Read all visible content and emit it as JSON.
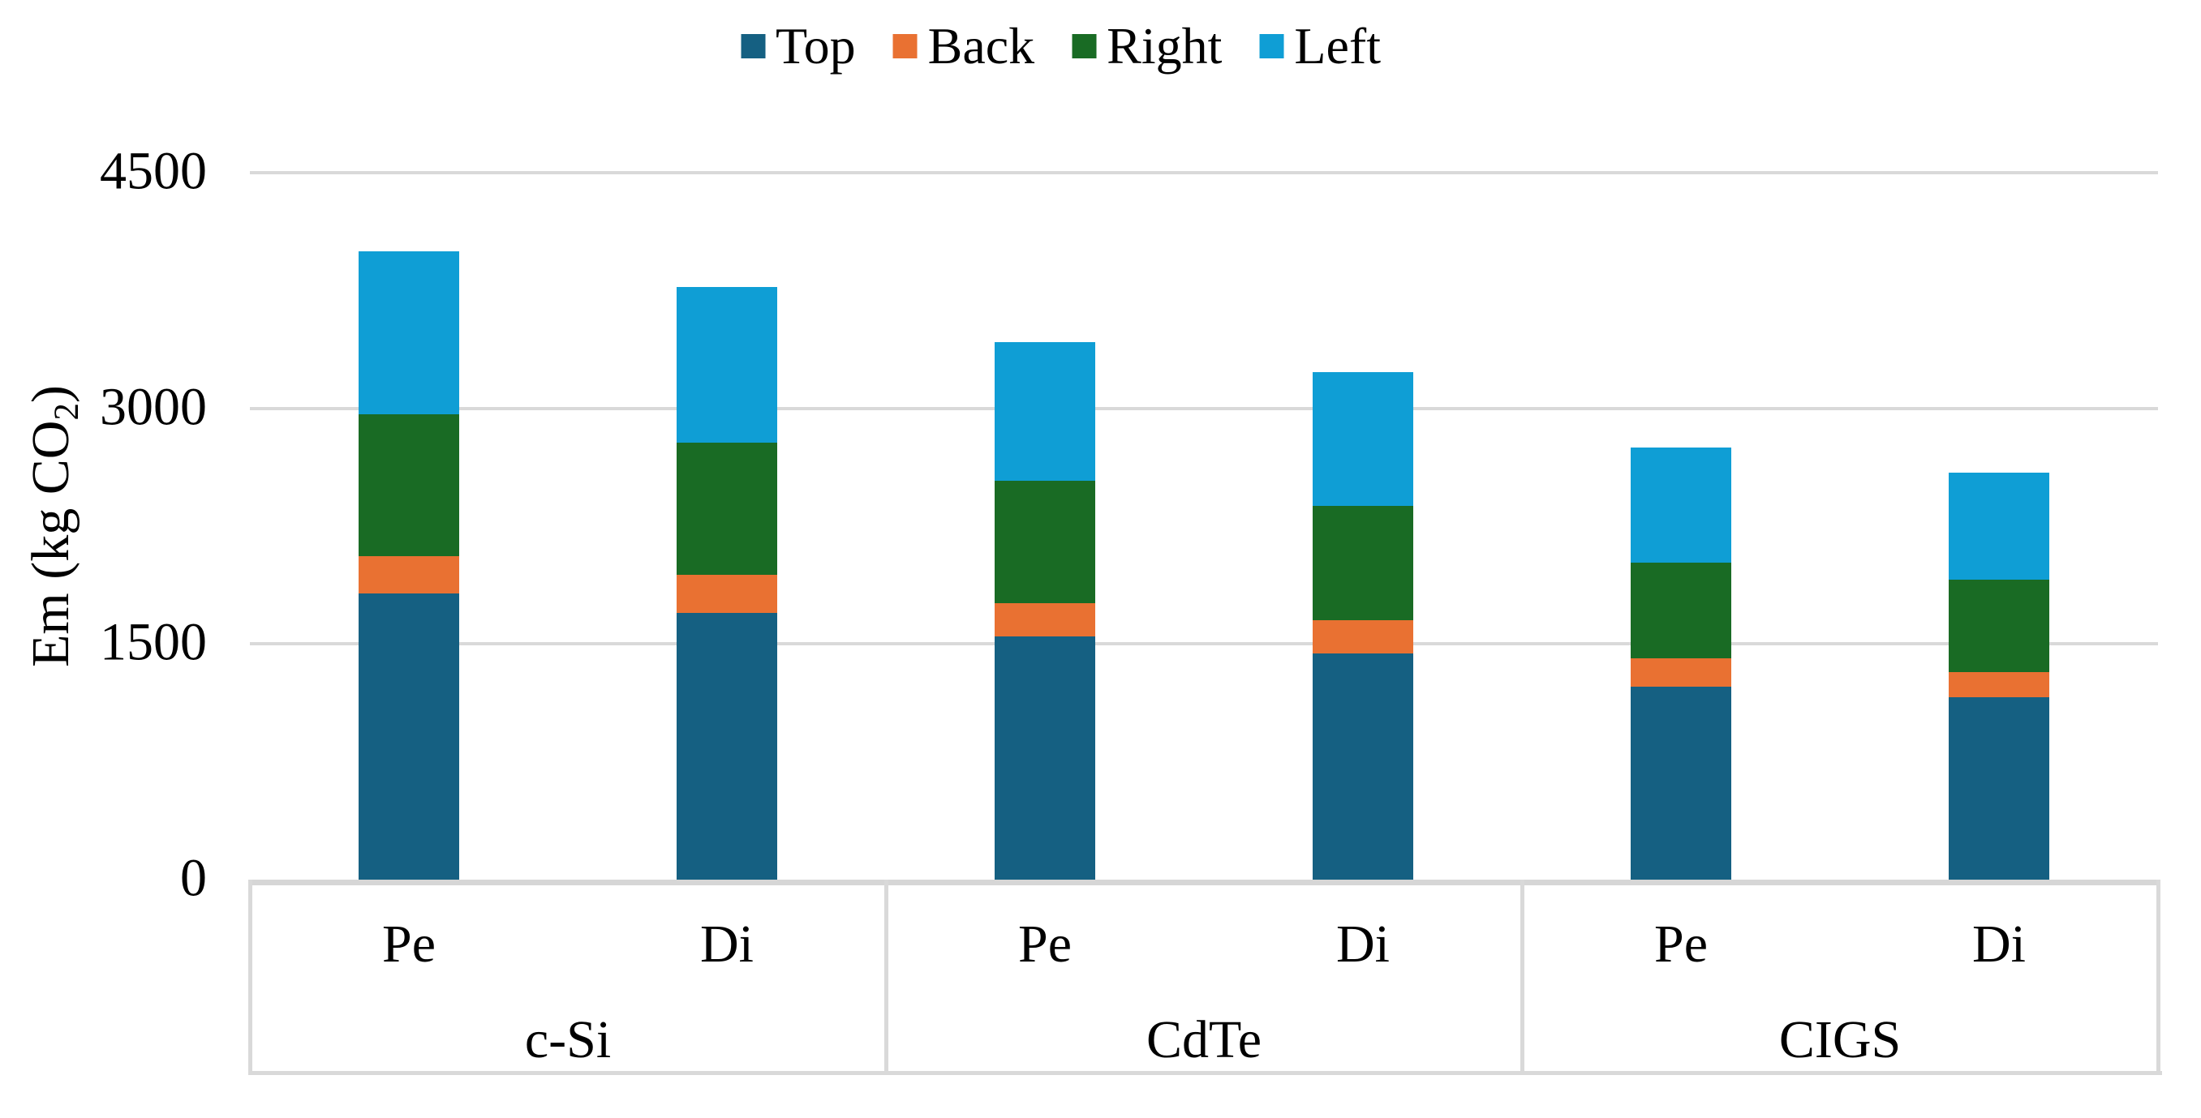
{
  "chart_data": {
    "type": "bar",
    "stacked": true,
    "title": "",
    "ylabel": "Em (kg CO2)",
    "ylabel_parts": {
      "pre": "Em (kg CO",
      "sub": "2",
      "post": ")"
    },
    "ylim": [
      0,
      4500
    ],
    "yticks": [
      0,
      1500,
      3000,
      4500
    ],
    "ytick_labels": [
      "0",
      "1500",
      "3000",
      "4500"
    ],
    "grid": true,
    "legend_position": "top",
    "groups": [
      {
        "label": "c-Si",
        "items": [
          "Pe",
          "Di"
        ]
      },
      {
        "label": "CdTe",
        "items": [
          "Pe",
          "Di"
        ]
      },
      {
        "label": "CIGS",
        "items": [
          "Pe",
          "Di"
        ]
      }
    ],
    "bar_labels": [
      "c-Si Pe",
      "c-Si Di",
      "CdTe Pe",
      "CdTe Di",
      "CIGS Pe",
      "CIGS Di"
    ],
    "stack_order_bottom_to_top": [
      "Top",
      "Back",
      "Right",
      "Left"
    ],
    "series": [
      {
        "name": "Top",
        "color": "#156082",
        "values": [
          1820,
          1700,
          1550,
          1440,
          1230,
          1160
        ]
      },
      {
        "name": "Back",
        "color": "#E97132",
        "values": [
          240,
          240,
          210,
          210,
          180,
          160
        ]
      },
      {
        "name": "Right",
        "color": "#196B24",
        "values": [
          900,
          840,
          780,
          730,
          610,
          590
        ]
      },
      {
        "name": "Left",
        "color": "#0F9ED5",
        "values": [
          1040,
          990,
          880,
          850,
          730,
          680
        ]
      }
    ],
    "totals_approx": [
      4000,
      3770,
      3420,
      3230,
      2750,
      2590
    ]
  },
  "style": {
    "background": "#FFFFFF",
    "text_color": "#000000",
    "gridline_color": "#D9D9D9",
    "axis_line_color": "#D6D6D6",
    "table_border_color": "#D9D9D9"
  }
}
